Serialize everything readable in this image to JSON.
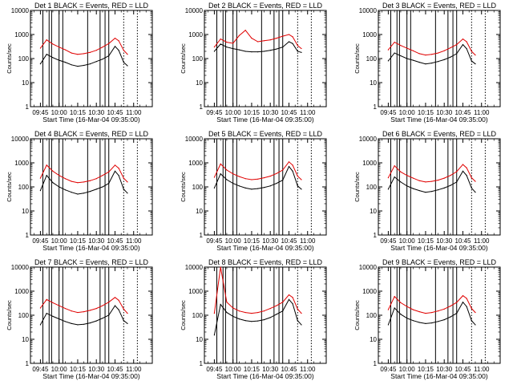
{
  "figure": {
    "colors": {
      "events": "#000000",
      "lld": "#e00000",
      "axes": "#000000",
      "background": "#ffffff"
    }
  },
  "chart_data": [
    {
      "type": "line",
      "title": "Det  1  BLACK = Events, RED = LLD",
      "xlabel": "Start Time (16-Mar-04 09:35:00)",
      "ylabel": "Counts/sec",
      "yscale": "log",
      "ylim": [
        1,
        10000
      ],
      "xlim": [
        "09:37",
        "11:15"
      ],
      "xtick_labels": [
        "09:45",
        "10:00",
        "10:15",
        "10:30",
        "10:45",
        "11:00"
      ],
      "ytick_labels": [
        "1",
        "10",
        "100",
        "1000",
        "10000"
      ],
      "x": [
        "09:45",
        "09:50",
        "09:55",
        "10:00",
        "10:05",
        "10:10",
        "10:15",
        "10:20",
        "10:25",
        "10:30",
        "10:35",
        "10:40",
        "10:45",
        "10:48",
        "10:52",
        "10:55"
      ],
      "series": [
        {
          "name": "Events",
          "color": "#000000",
          "values": [
            60,
            150,
            110,
            85,
            70,
            55,
            48,
            52,
            60,
            75,
            95,
            130,
            320,
            220,
            70,
            50
          ]
        },
        {
          "name": "LLD",
          "color": "#e00000",
          "values": [
            270,
            600,
            400,
            300,
            230,
            170,
            150,
            160,
            180,
            220,
            300,
            420,
            700,
            550,
            220,
            150
          ]
        }
      ],
      "vlines_solid": [
        "09:47",
        "09:52",
        "09:54",
        "10:00",
        "10:03",
        "10:23",
        "10:33",
        "10:37",
        "10:40"
      ],
      "vlines_dotted": [
        "10:52",
        "11:03"
      ]
    },
    {
      "type": "line",
      "title": "Det  2  BLACK = Events, RED = LLD",
      "xlabel": "Start Time (16-Mar-04 09:35:00)",
      "ylabel": "Counts/sec",
      "yscale": "log",
      "ylim": [
        1,
        10000
      ],
      "xlim": [
        "09:37",
        "11:15"
      ],
      "xtick_labels": [
        "09:45",
        "10:00",
        "10:15",
        "10:30",
        "10:45",
        "11:00"
      ],
      "ytick_labels": [
        "1",
        "10",
        "100",
        "1000",
        "10000"
      ],
      "x": [
        "09:45",
        "09:50",
        "09:55",
        "10:00",
        "10:05",
        "10:10",
        "10:15",
        "10:20",
        "10:25",
        "10:30",
        "10:35",
        "10:40",
        "10:45",
        "10:48",
        "10:52",
        "10:55"
      ],
      "series": [
        {
          "name": "Events",
          "color": "#000000",
          "values": [
            200,
            400,
            300,
            260,
            230,
            200,
            190,
            190,
            200,
            220,
            250,
            300,
            500,
            420,
            200,
            180
          ]
        },
        {
          "name": "LLD",
          "color": "#e00000",
          "values": [
            300,
            650,
            480,
            430,
            900,
            1500,
            700,
            500,
            550,
            600,
            700,
            850,
            1000,
            800,
            350,
            260
          ]
        }
      ],
      "vlines_solid": [
        "09:47",
        "09:52",
        "09:54",
        "10:00",
        "10:03",
        "10:23",
        "10:33",
        "10:37",
        "10:40"
      ],
      "vlines_dotted": [
        "10:52",
        "11:03"
      ]
    },
    {
      "type": "line",
      "title": "Det  3  BLACK = Events, RED = LLD",
      "xlabel": "Start Time (16-Mar-04 09:35:00)",
      "ylabel": "Counts/sec",
      "yscale": "log",
      "ylim": [
        1,
        10000
      ],
      "xlim": [
        "09:37",
        "11:15"
      ],
      "xtick_labels": [
        "09:45",
        "10:00",
        "10:15",
        "10:30",
        "10:45",
        "11:00"
      ],
      "ytick_labels": [
        "1",
        "10",
        "100",
        "1000",
        "10000"
      ],
      "x": [
        "09:45",
        "09:50",
        "09:55",
        "10:00",
        "10:05",
        "10:10",
        "10:15",
        "10:20",
        "10:25",
        "10:30",
        "10:35",
        "10:40",
        "10:45",
        "10:48",
        "10:52",
        "10:55"
      ],
      "series": [
        {
          "name": "Events",
          "color": "#000000",
          "values": [
            80,
            170,
            130,
            100,
            85,
            70,
            60,
            65,
            75,
            90,
            115,
            160,
            380,
            260,
            80,
            60
          ]
        },
        {
          "name": "LLD",
          "color": "#e00000",
          "values": [
            230,
            480,
            350,
            270,
            210,
            160,
            140,
            150,
            170,
            210,
            280,
            380,
            650,
            500,
            200,
            140
          ]
        }
      ],
      "vlines_solid": [
        "09:47",
        "09:52",
        "09:54",
        "10:00",
        "10:03",
        "10:23",
        "10:33",
        "10:37",
        "10:40"
      ],
      "vlines_dotted": [
        "10:52",
        "11:03"
      ]
    },
    {
      "type": "line",
      "title": "Det  4  BLACK = Events, RED = LLD",
      "xlabel": "Start Time (16-Mar-04 09:35:00)",
      "ylabel": "Counts/sec",
      "yscale": "log",
      "ylim": [
        1,
        10000
      ],
      "xlim": [
        "09:37",
        "11:15"
      ],
      "xtick_labels": [
        "09:45",
        "10:00",
        "10:15",
        "10:30",
        "10:45",
        "11:00"
      ],
      "ytick_labels": [
        "1",
        "10",
        "100",
        "1000",
        "10000"
      ],
      "x": [
        "09:45",
        "09:50",
        "09:55",
        "10:00",
        "10:05",
        "10:10",
        "10:15",
        "10:20",
        "10:25",
        "10:30",
        "10:35",
        "10:40",
        "10:45",
        "10:48",
        "10:52",
        "10:55"
      ],
      "series": [
        {
          "name": "Events",
          "color": "#000000",
          "values": [
            70,
            300,
            150,
            100,
            75,
            60,
            50,
            55,
            65,
            80,
            100,
            140,
            450,
            300,
            80,
            55
          ]
        },
        {
          "name": "LLD",
          "color": "#e00000",
          "values": [
            230,
            800,
            450,
            300,
            220,
            170,
            150,
            160,
            180,
            220,
            300,
            420,
            800,
            600,
            230,
            160
          ]
        }
      ],
      "vlines_solid": [
        "09:47",
        "09:52",
        "09:54",
        "10:00",
        "10:03",
        "10:23",
        "10:33",
        "10:37",
        "10:40"
      ],
      "vlines_dotted": [
        "10:52",
        "11:03"
      ]
    },
    {
      "type": "line",
      "title": "Det  5  BLACK = Events, RED = LLD",
      "xlabel": "Start Time (16-Mar-04 09:35:00)",
      "ylabel": "Counts/sec",
      "yscale": "log",
      "ylim": [
        1,
        10000
      ],
      "xlim": [
        "09:37",
        "11:15"
      ],
      "xtick_labels": [
        "09:45",
        "10:00",
        "10:15",
        "10:30",
        "10:45",
        "11:00"
      ],
      "ytick_labels": [
        "1",
        "10",
        "100",
        "1000",
        "10000"
      ],
      "x": [
        "09:45",
        "09:50",
        "09:55",
        "10:00",
        "10:05",
        "10:10",
        "10:15",
        "10:20",
        "10:25",
        "10:30",
        "10:35",
        "10:40",
        "10:45",
        "10:48",
        "10:52",
        "10:55"
      ],
      "series": [
        {
          "name": "Events",
          "color": "#000000",
          "values": [
            90,
            350,
            200,
            140,
            110,
            90,
            80,
            85,
            95,
            110,
            140,
            190,
            700,
            450,
            110,
            80
          ]
        },
        {
          "name": "LLD",
          "color": "#e00000",
          "values": [
            250,
            900,
            500,
            350,
            270,
            220,
            200,
            210,
            240,
            280,
            360,
            500,
            1100,
            800,
            280,
            200
          ]
        }
      ],
      "vlines_solid": [
        "09:47",
        "09:52",
        "09:54",
        "10:00",
        "10:03",
        "10:23",
        "10:33",
        "10:37",
        "10:40"
      ],
      "vlines_dotted": [
        "10:52",
        "11:03"
      ]
    },
    {
      "type": "line",
      "title": "Det  6  BLACK = Events, RED = LLD",
      "xlabel": "Start Time (16-Mar-04 09:35:00)",
      "ylabel": "Counts/sec",
      "yscale": "log",
      "ylim": [
        1,
        10000
      ],
      "xlim": [
        "09:37",
        "11:15"
      ],
      "xtick_labels": [
        "09:45",
        "10:00",
        "10:15",
        "10:30",
        "10:45",
        "11:00"
      ],
      "ytick_labels": [
        "1",
        "10",
        "100",
        "1000",
        "10000"
      ],
      "x": [
        "09:45",
        "09:50",
        "09:55",
        "10:00",
        "10:05",
        "10:10",
        "10:15",
        "10:20",
        "10:25",
        "10:30",
        "10:35",
        "10:40",
        "10:45",
        "10:48",
        "10:52",
        "10:55"
      ],
      "series": [
        {
          "name": "Events",
          "color": "#000000",
          "values": [
            80,
            260,
            160,
            110,
            85,
            70,
            60,
            65,
            75,
            90,
            115,
            160,
            450,
            300,
            90,
            60
          ]
        },
        {
          "name": "LLD",
          "color": "#e00000",
          "values": [
            240,
            750,
            420,
            300,
            230,
            180,
            160,
            170,
            190,
            230,
            300,
            430,
            850,
            620,
            240,
            170
          ]
        }
      ],
      "vlines_solid": [
        "09:47",
        "09:52",
        "09:54",
        "10:00",
        "10:03",
        "10:23",
        "10:33",
        "10:37",
        "10:40"
      ],
      "vlines_dotted": [
        "10:52",
        "11:03"
      ]
    },
    {
      "type": "line",
      "title": "Det  7  BLACK = Events, RED = LLD",
      "xlabel": "Start Time (16-Mar-04 09:35:00)",
      "ylabel": "Counts/sec",
      "yscale": "log",
      "ylim": [
        1,
        10000
      ],
      "xlim": [
        "09:37",
        "11:15"
      ],
      "xtick_labels": [
        "09:45",
        "10:00",
        "10:15",
        "10:30",
        "10:45",
        "11:00"
      ],
      "ytick_labels": [
        "1",
        "10",
        "100",
        "1000",
        "10000"
      ],
      "x": [
        "09:45",
        "09:50",
        "09:55",
        "10:00",
        "10:05",
        "10:10",
        "10:15",
        "10:20",
        "10:25",
        "10:30",
        "10:35",
        "10:40",
        "10:45",
        "10:48",
        "10:52",
        "10:55"
      ],
      "series": [
        {
          "name": "Events",
          "color": "#000000",
          "values": [
            40,
            120,
            90,
            70,
            55,
            45,
            40,
            42,
            48,
            58,
            75,
            100,
            250,
            170,
            60,
            45
          ]
        },
        {
          "name": "LLD",
          "color": "#e00000",
          "values": [
            200,
            450,
            330,
            250,
            190,
            150,
            130,
            140,
            160,
            190,
            250,
            350,
            550,
            420,
            180,
            120
          ]
        }
      ],
      "vlines_solid": [
        "09:47",
        "09:52",
        "09:54",
        "10:00",
        "10:03",
        "10:23",
        "10:33",
        "10:37",
        "10:40"
      ],
      "vlines_dotted": [
        "10:52",
        "11:03"
      ]
    },
    {
      "type": "line",
      "title": "Det  8  BLACK = Events, RED = LLD",
      "xlabel": "Start Time (16-Mar-04 09:35:00)",
      "ylabel": "Counts/sec",
      "yscale": "log",
      "ylim": [
        1,
        10000
      ],
      "xlim": [
        "09:37",
        "11:15"
      ],
      "xtick_labels": [
        "09:45",
        "10:00",
        "10:15",
        "10:30",
        "10:45",
        "11:00"
      ],
      "ytick_labels": [
        "1",
        "10",
        "100",
        "1000",
        "10000"
      ],
      "x": [
        "09:45",
        "09:50",
        "09:55",
        "10:00",
        "10:05",
        "10:10",
        "10:15",
        "10:20",
        "10:25",
        "10:30",
        "10:35",
        "10:40",
        "10:45",
        "10:48",
        "10:52",
        "10:55"
      ],
      "series": [
        {
          "name": "Events",
          "color": "#000000",
          "values": [
            15,
            280,
            130,
            90,
            70,
            60,
            55,
            58,
            65,
            80,
            110,
            150,
            450,
            300,
            60,
            40
          ]
        },
        {
          "name": "LLD",
          "color": "#e00000",
          "values": [
            120,
            10000,
            350,
            200,
            150,
            130,
            120,
            130,
            150,
            190,
            250,
            350,
            700,
            550,
            180,
            120
          ]
        }
      ],
      "vlines_solid": [
        "09:47",
        "09:52",
        "09:54",
        "10:00",
        "10:03",
        "10:23",
        "10:33",
        "10:37",
        "10:40"
      ],
      "vlines_dotted": [
        "10:52",
        "11:03"
      ]
    },
    {
      "type": "line",
      "title": "Det  9  BLACK = Events, RED = LLD",
      "xlabel": "Start Time (16-Mar-04 09:35:00)",
      "ylabel": "Counts/sec",
      "yscale": "log",
      "ylim": [
        1,
        10000
      ],
      "xlim": [
        "09:37",
        "11:15"
      ],
      "xtick_labels": [
        "09:45",
        "10:00",
        "10:15",
        "10:30",
        "10:45",
        "11:00"
      ],
      "ytick_labels": [
        "1",
        "10",
        "100",
        "1000",
        "10000"
      ],
      "x": [
        "09:45",
        "09:50",
        "09:55",
        "10:00",
        "10:05",
        "10:10",
        "10:15",
        "10:20",
        "10:25",
        "10:30",
        "10:35",
        "10:40",
        "10:45",
        "10:48",
        "10:52",
        "10:55"
      ],
      "series": [
        {
          "name": "Events",
          "color": "#000000",
          "values": [
            40,
            200,
            110,
            75,
            60,
            50,
            45,
            48,
            55,
            65,
            85,
            120,
            350,
            230,
            60,
            40
          ]
        },
        {
          "name": "LLD",
          "color": "#e00000",
          "values": [
            170,
            600,
            330,
            230,
            170,
            140,
            120,
            130,
            150,
            180,
            240,
            340,
            650,
            500,
            190,
            130
          ]
        }
      ],
      "vlines_solid": [
        "09:47",
        "09:52",
        "09:54",
        "10:00",
        "10:03",
        "10:23",
        "10:33",
        "10:37",
        "10:40"
      ],
      "vlines_dotted": [
        "10:52",
        "11:03"
      ]
    }
  ]
}
